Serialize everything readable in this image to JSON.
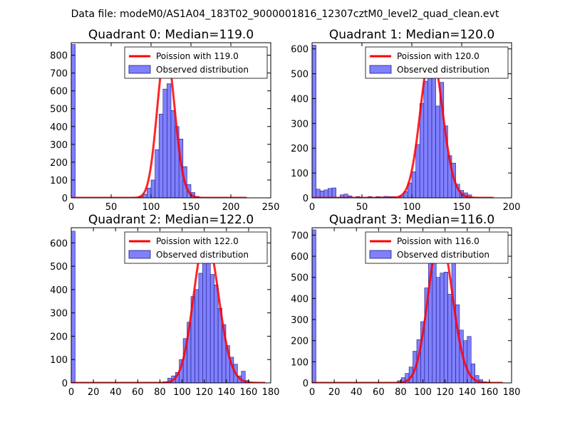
{
  "figure_title": "Data file: modeM0/AS1A04_183T02_9000001816_12307cztM0_level2_quad_clean.evt",
  "colors": {
    "bar_fill": "#8080ff",
    "bar_edge": "#1a1a80",
    "curve": "#ff0000",
    "axes": "#000000"
  },
  "chart_data": [
    {
      "type": "bar",
      "title": "Quadrant 0: Median=119.0",
      "xlim": [
        0,
        250
      ],
      "ylim": [
        0,
        870
      ],
      "xticks": [
        "0",
        "50",
        "100",
        "150",
        "200",
        "250"
      ],
      "xtick_values": [
        0,
        50,
        100,
        150,
        200,
        250
      ],
      "yticks": [
        "0",
        "100",
        "200",
        "300",
        "400",
        "500",
        "600",
        "700",
        "800"
      ],
      "ytick_values": [
        0,
        100,
        200,
        300,
        400,
        500,
        600,
        700,
        800
      ],
      "bin_width": 5,
      "bins": [
        [
          0,
          860
        ],
        [
          85,
          8
        ],
        [
          90,
          20
        ],
        [
          95,
          55
        ],
        [
          100,
          100
        ],
        [
          105,
          270
        ],
        [
          110,
          470
        ],
        [
          115,
          610
        ],
        [
          120,
          640
        ],
        [
          125,
          490
        ],
        [
          130,
          400
        ],
        [
          135,
          330
        ],
        [
          140,
          175
        ],
        [
          145,
          75
        ],
        [
          150,
          30
        ],
        [
          155,
          8
        ]
      ],
      "poisson_mean": 119.0,
      "poisson_peak": 830,
      "poisson_xrange": [
        0,
        220
      ],
      "legend": [
        "Poission with 119.0",
        "Observed distribution"
      ]
    },
    {
      "type": "bar",
      "title": "Quadrant 1: Median=120.0",
      "xlim": [
        0,
        200
      ],
      "ylim": [
        0,
        625
      ],
      "xticks": [
        "0",
        "50",
        "100",
        "150",
        "200"
      ],
      "xtick_values": [
        0,
        50,
        100,
        150,
        200
      ],
      "yticks": [
        "0",
        "100",
        "200",
        "300",
        "400",
        "500",
        "600"
      ],
      "ytick_values": [
        0,
        100,
        200,
        300,
        400,
        500,
        600
      ],
      "bin_width": 4,
      "bins": [
        [
          0,
          615
        ],
        [
          4,
          35
        ],
        [
          8,
          28
        ],
        [
          12,
          32
        ],
        [
          16,
          38
        ],
        [
          20,
          40
        ],
        [
          28,
          12
        ],
        [
          32,
          15
        ],
        [
          36,
          8
        ],
        [
          44,
          5
        ],
        [
          56,
          5
        ],
        [
          64,
          5
        ],
        [
          68,
          4
        ],
        [
          72,
          6
        ],
        [
          76,
          5
        ],
        [
          80,
          5
        ],
        [
          88,
          8
        ],
        [
          92,
          25
        ],
        [
          96,
          60
        ],
        [
          100,
          105
        ],
        [
          104,
          215
        ],
        [
          108,
          380
        ],
        [
          112,
          470
        ],
        [
          116,
          560
        ],
        [
          120,
          500
        ],
        [
          124,
          370
        ],
        [
          128,
          465
        ],
        [
          132,
          290
        ],
        [
          136,
          170
        ],
        [
          140,
          140
        ],
        [
          144,
          55
        ],
        [
          148,
          30
        ],
        [
          152,
          20
        ],
        [
          156,
          12
        ]
      ],
      "poisson_mean": 120.0,
      "poisson_peak": 590,
      "poisson_xrange": [
        0,
        182
      ],
      "legend": [
        "Poission with 120.0",
        "Observed distribution"
      ]
    },
    {
      "type": "bar",
      "title": "Quadrant 2: Median=122.0",
      "xlim": [
        0,
        180
      ],
      "ylim": [
        0,
        665
      ],
      "xticks": [
        "0",
        "20",
        "40",
        "60",
        "80",
        "100",
        "120",
        "140",
        "160",
        "180"
      ],
      "xtick_values": [
        0,
        20,
        40,
        60,
        80,
        100,
        120,
        140,
        160,
        180
      ],
      "yticks": [
        "0",
        "100",
        "200",
        "300",
        "400",
        "500",
        "600"
      ],
      "ytick_values": [
        0,
        100,
        200,
        300,
        400,
        500,
        600
      ],
      "bin_width": 3.5,
      "bins": [
        [
          0,
          650
        ],
        [
          83,
          5
        ],
        [
          87,
          20
        ],
        [
          90.5,
          30
        ],
        [
          94,
          45
        ],
        [
          97.5,
          100
        ],
        [
          101,
          190
        ],
        [
          104.5,
          260
        ],
        [
          108,
          370
        ],
        [
          111.5,
          400
        ],
        [
          115,
          470
        ],
        [
          118.5,
          590
        ],
        [
          122,
          600
        ],
        [
          125.5,
          465
        ],
        [
          129,
          420
        ],
        [
          132.5,
          320
        ],
        [
          136,
          250
        ],
        [
          139.5,
          160
        ],
        [
          143,
          110
        ],
        [
          146.5,
          80
        ],
        [
          150,
          30
        ],
        [
          153.5,
          50
        ],
        [
          157,
          10
        ]
      ],
      "poisson_mean": 122.0,
      "poisson_peak": 630,
      "poisson_xrange": [
        0,
        175
      ],
      "legend": [
        "Poission with 122.0",
        "Observed distribution"
      ]
    },
    {
      "type": "bar",
      "title": "Quadrant 3: Median=116.0",
      "xlim": [
        0,
        180
      ],
      "ylim": [
        0,
        735
      ],
      "xticks": [
        "0",
        "20",
        "40",
        "60",
        "80",
        "100",
        "120",
        "140",
        "160",
        "180"
      ],
      "xtick_values": [
        0,
        20,
        40,
        60,
        80,
        100,
        120,
        140,
        160,
        180
      ],
      "yticks": [
        "0",
        "100",
        "200",
        "300",
        "400",
        "500",
        "600",
        "700"
      ],
      "ytick_values": [
        0,
        100,
        200,
        300,
        400,
        500,
        600,
        700
      ],
      "bin_width": 3.5,
      "bins": [
        [
          0,
          725
        ],
        [
          77,
          10
        ],
        [
          80.5,
          25
        ],
        [
          84,
          45
        ],
        [
          87.5,
          75
        ],
        [
          91,
          150
        ],
        [
          94.5,
          205
        ],
        [
          98,
          290
        ],
        [
          101.5,
          450
        ],
        [
          105,
          580
        ],
        [
          108.5,
          615
        ],
        [
          112,
          500
        ],
        [
          115.5,
          520
        ],
        [
          119,
          525
        ],
        [
          122.5,
          420
        ],
        [
          126,
          570
        ],
        [
          129.5,
          370
        ],
        [
          133,
          250
        ],
        [
          136.5,
          200
        ],
        [
          140,
          220
        ],
        [
          143.5,
          90
        ],
        [
          147,
          35
        ],
        [
          150.5,
          15
        ],
        [
          154,
          5
        ]
      ],
      "poisson_mean": 116.0,
      "poisson_peak": 700,
      "poisson_xrange": [
        0,
        172
      ],
      "legend": [
        "Poission with 116.0",
        "Observed distribution"
      ]
    }
  ]
}
